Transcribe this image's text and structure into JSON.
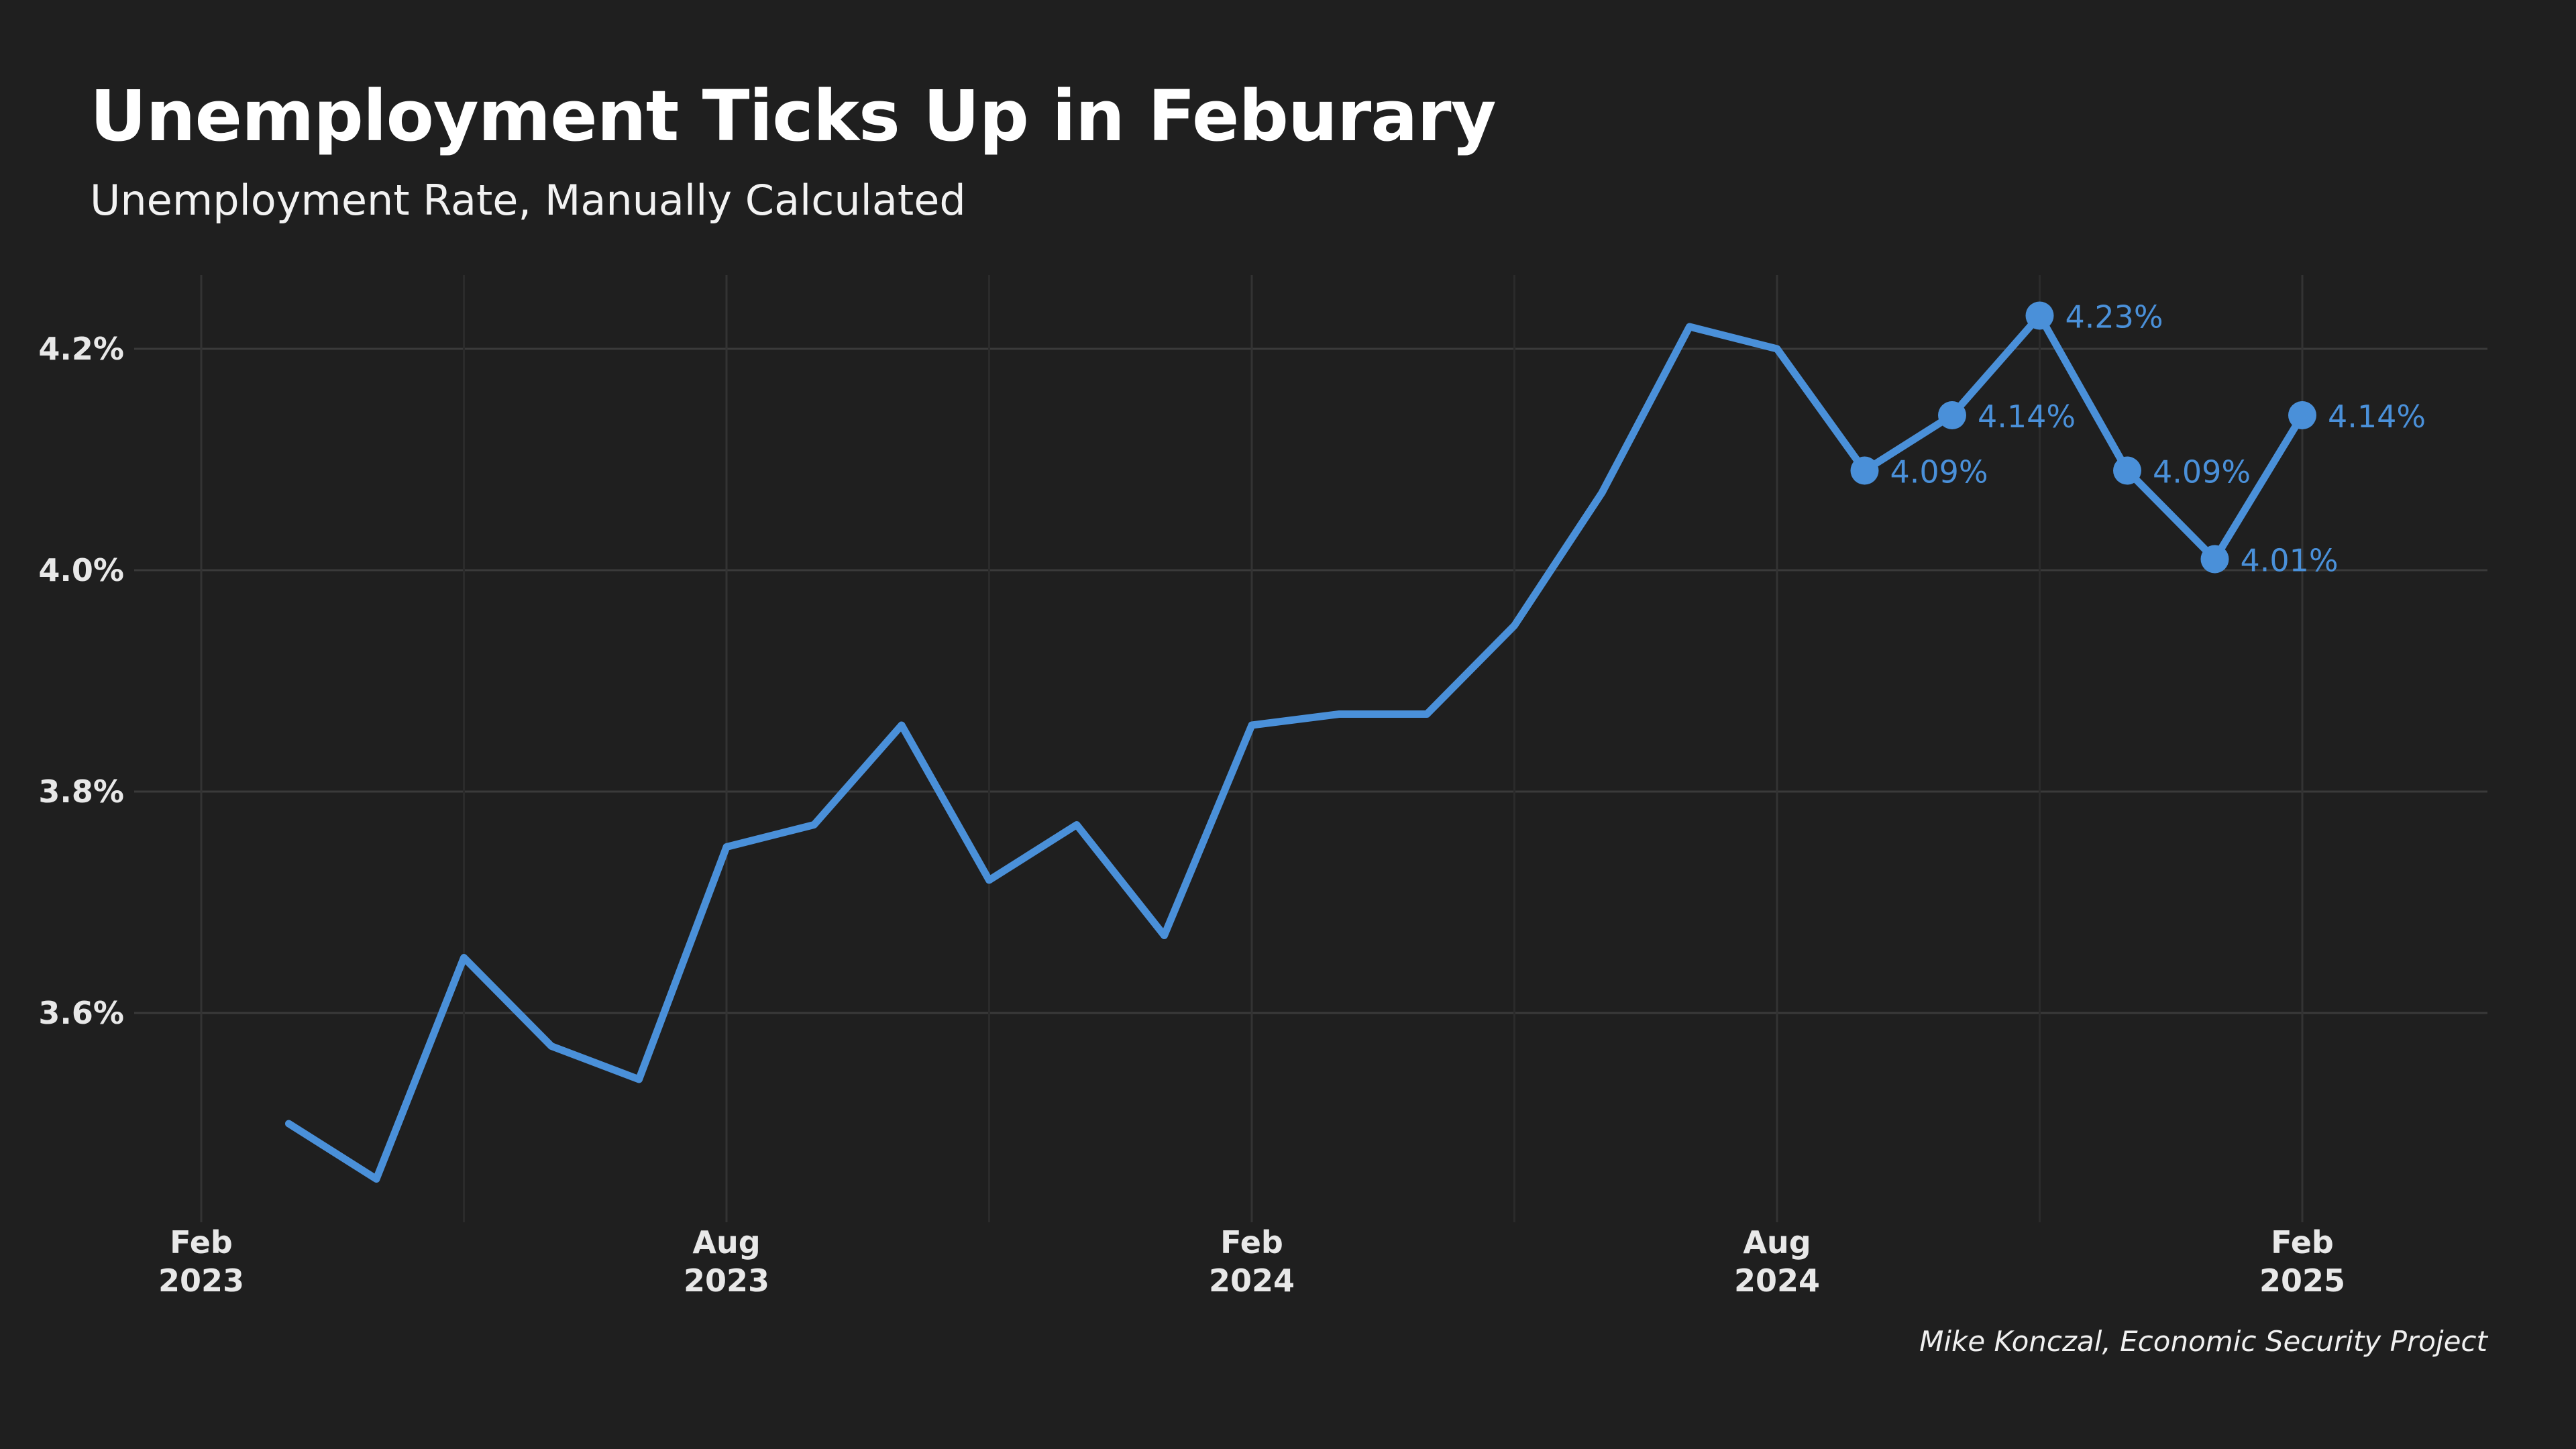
{
  "title": "Unemployment Ticks Up in Feburary",
  "subtitle": "Unemployment Rate, Manually Calculated",
  "caption": "Mike Konczal, Economic Security Project",
  "colors": {
    "background": "#1f1f1f",
    "grid": "#3a3a3a",
    "series": "#4a90d9",
    "text": "#ffffff"
  },
  "chart_data": {
    "type": "line",
    "title": "Unemployment Ticks Up in Feburary",
    "subtitle": "Unemployment Rate, Manually Calculated",
    "xlabel": "",
    "ylabel": "",
    "grid": true,
    "legend": "none",
    "xlim": [
      "2023-02",
      "2025-04"
    ],
    "ylim": [
      3.42,
      4.27
    ],
    "y_ticks": [
      3.6,
      3.8,
      4.0,
      4.2
    ],
    "y_tick_labels": [
      "3.6%",
      "3.8%",
      "4.0%",
      "4.2%"
    ],
    "x_ticks": [
      {
        "date": "2023-02",
        "line1": "Feb",
        "line2": "2023"
      },
      {
        "date": "2023-08",
        "line1": "Aug",
        "line2": "2023"
      },
      {
        "date": "2024-02",
        "line1": "Feb",
        "line2": "2024"
      },
      {
        "date": "2024-08",
        "line1": "Aug",
        "line2": "2024"
      },
      {
        "date": "2025-02",
        "line1": "Feb",
        "line2": "2025"
      }
    ],
    "minor_x_gridlines": [
      "2023-05",
      "2023-11",
      "2024-05",
      "2024-11"
    ],
    "series": [
      {
        "values": [
          {
            "date": "2023-03",
            "y": 3.5
          },
          {
            "date": "2023-04",
            "y": 3.45
          },
          {
            "date": "2023-05",
            "y": 3.65
          },
          {
            "date": "2023-06",
            "y": 3.57
          },
          {
            "date": "2023-07",
            "y": 3.54
          },
          {
            "date": "2023-08",
            "y": 3.75
          },
          {
            "date": "2023-09",
            "y": 3.77
          },
          {
            "date": "2023-10",
            "y": 3.86
          },
          {
            "date": "2023-11",
            "y": 3.72
          },
          {
            "date": "2023-12",
            "y": 3.77
          },
          {
            "date": "2024-01",
            "y": 3.67
          },
          {
            "date": "2024-02",
            "y": 3.86
          },
          {
            "date": "2024-03",
            "y": 3.87
          },
          {
            "date": "2024-04",
            "y": 3.87
          },
          {
            "date": "2024-05",
            "y": 3.95
          },
          {
            "date": "2024-06",
            "y": 4.07
          },
          {
            "date": "2024-07",
            "y": 4.22
          },
          {
            "date": "2024-08",
            "y": 4.2
          },
          {
            "date": "2024-09",
            "y": 4.09,
            "label": "4.09%"
          },
          {
            "date": "2024-10",
            "y": 4.14,
            "label": "4.14%"
          },
          {
            "date": "2024-11",
            "y": 4.23,
            "label": "4.23%"
          },
          {
            "date": "2024-12",
            "y": 4.09,
            "label": "4.09%"
          },
          {
            "date": "2025-01",
            "y": 4.01,
            "label": "4.01%"
          },
          {
            "date": "2025-02",
            "y": 4.14,
            "label": "4.14%"
          }
        ]
      }
    ]
  }
}
